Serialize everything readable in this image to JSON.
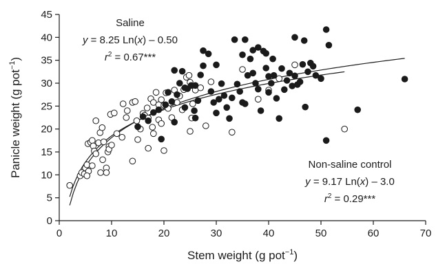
{
  "chart_data": {
    "type": "scatter",
    "xlabel": "Stem weight (g pot",
    "xlabel_sup": "−1",
    "xlabel_end": ")",
    "ylabel": "Panicle weight (g pot",
    "ylabel_sup": "−1",
    "ylabel_end": ")",
    "xlim": [
      0,
      70
    ],
    "ylim": [
      0,
      45
    ],
    "x_ticks": [
      "0",
      "10",
      "20",
      "30",
      "40",
      "50",
      "60",
      "70"
    ],
    "y_ticks": [
      "0",
      "5",
      "10",
      "15",
      "20",
      "25",
      "30",
      "35",
      "40",
      "45"
    ],
    "grid": false,
    "series": [
      {
        "name": "Saline",
        "marker": "open-circle",
        "points": [
          [
            2,
            7.7
          ],
          [
            4,
            9.8
          ],
          [
            4.3,
            10.5
          ],
          [
            4.8,
            10.2
          ],
          [
            5,
            11.5
          ],
          [
            5.3,
            12.2
          ],
          [
            5.6,
            10.8
          ],
          [
            5.3,
            9.8
          ],
          [
            5.5,
            16.8
          ],
          [
            6,
            17.1
          ],
          [
            6.3,
            17.5
          ],
          [
            6.5,
            16.3
          ],
          [
            6.7,
            15.2
          ],
          [
            7,
            14.6
          ],
          [
            6.3,
            12
          ],
          [
            7.5,
            17
          ],
          [
            7.8,
            19.2
          ],
          [
            8.2,
            20.3
          ],
          [
            7,
            21.8
          ],
          [
            8.5,
            17.2
          ],
          [
            8.3,
            13.3
          ],
          [
            9.3,
            15
          ],
          [
            9.5,
            16.2
          ],
          [
            9.8,
            23.2
          ],
          [
            10.5,
            23.5
          ],
          [
            9,
            11.5
          ],
          [
            9,
            10.5
          ],
          [
            7.9,
            10.5
          ],
          [
            12,
            18.2
          ],
          [
            12.2,
            25.5
          ],
          [
            12.8,
            22.5
          ],
          [
            14,
            25.8
          ],
          [
            14.5,
            26
          ],
          [
            14.8,
            21.8
          ],
          [
            15.5,
            20
          ],
          [
            16,
            23.4
          ],
          [
            16.3,
            23
          ],
          [
            16.8,
            24.6
          ],
          [
            17,
            22.4
          ],
          [
            17.5,
            26.6
          ],
          [
            18,
            25.8
          ],
          [
            17.8,
            20.4
          ],
          [
            18.5,
            28
          ],
          [
            19,
            25.3
          ],
          [
            19.5,
            26.4
          ],
          [
            20,
            25.2
          ],
          [
            20.4,
            27.9
          ],
          [
            20.8,
            24.5
          ],
          [
            21.5,
            22.5
          ],
          [
            22,
            28.5
          ],
          [
            22.5,
            25.8
          ],
          [
            23,
            27.2
          ],
          [
            23.5,
            24.2
          ],
          [
            23.8,
            28.6
          ],
          [
            24.3,
            31.3
          ],
          [
            24.8,
            31.7
          ],
          [
            25,
            30.2
          ],
          [
            25.5,
            25.5
          ],
          [
            25.3,
            22.4
          ],
          [
            26,
            28.5
          ],
          [
            27,
            29
          ],
          [
            28,
            20.7
          ],
          [
            29,
            30.3
          ],
          [
            19,
            22
          ],
          [
            19.5,
            21.2
          ],
          [
            20,
            15.3
          ],
          [
            17,
            15.8
          ],
          [
            18,
            19
          ],
          [
            15,
            17.7
          ],
          [
            14,
            13
          ],
          [
            25,
            19.5
          ],
          [
            33,
            19.3
          ],
          [
            35,
            33
          ],
          [
            38,
            26.5
          ],
          [
            40,
            28.5
          ],
          [
            42,
            31
          ],
          [
            45,
            34
          ],
          [
            54.5,
            20
          ],
          [
            9.5,
            15.6
          ],
          [
            10,
            16.5
          ],
          [
            13,
            24
          ],
          [
            11,
            19
          ]
        ]
      },
      {
        "name": "Non-saline control",
        "marker": "filled-circle",
        "points": [
          [
            15,
            20.5
          ],
          [
            16,
            22.7
          ],
          [
            17,
            21.8
          ],
          [
            18,
            23.6
          ],
          [
            19,
            24.2
          ],
          [
            19.5,
            17.8
          ],
          [
            20.3,
            25.3
          ],
          [
            20.8,
            28
          ],
          [
            21.5,
            26
          ],
          [
            22,
            21.5
          ],
          [
            22.5,
            27.5
          ],
          [
            23,
            30
          ],
          [
            23.5,
            32.6
          ],
          [
            24,
            24.7
          ],
          [
            24.5,
            28.8
          ],
          [
            25.2,
            29.5
          ],
          [
            25.8,
            24
          ],
          [
            26,
            22.4
          ],
          [
            26.5,
            26.2
          ],
          [
            27,
            31.8
          ],
          [
            27.5,
            33.8
          ],
          [
            27.5,
            37.1
          ],
          [
            28.5,
            36.4
          ],
          [
            29,
            28.2
          ],
          [
            29.5,
            25.8
          ],
          [
            30,
            23.5
          ],
          [
            30.5,
            26.5
          ],
          [
            31,
            29.9
          ],
          [
            31.5,
            27.3
          ],
          [
            32,
            24.7
          ],
          [
            32.5,
            22.3
          ],
          [
            33,
            26.8
          ],
          [
            33.5,
            39.5
          ],
          [
            34,
            29.8
          ],
          [
            34.5,
            28.2
          ],
          [
            35,
            25.8
          ],
          [
            35.5,
            25.5
          ],
          [
            35,
            36.2
          ],
          [
            35.5,
            39.5
          ],
          [
            36,
            31.7
          ],
          [
            36.5,
            35.3
          ],
          [
            37,
            37.2
          ],
          [
            37,
            32.2
          ],
          [
            37.5,
            30
          ],
          [
            38,
            28.7
          ],
          [
            38.5,
            24
          ],
          [
            38,
            37.8
          ],
          [
            39,
            37
          ],
          [
            39.5,
            36.5
          ],
          [
            39.5,
            33.3
          ],
          [
            40,
            31.5
          ],
          [
            40,
            28
          ],
          [
            40.5,
            30
          ],
          [
            40.8,
            35.3
          ],
          [
            41,
            31.7
          ],
          [
            41.5,
            26.7
          ],
          [
            42,
            22.3
          ],
          [
            42.5,
            33.2
          ],
          [
            43,
            28.6
          ],
          [
            43.5,
            30.6
          ],
          [
            44,
            32.2
          ],
          [
            44.5,
            29.4
          ],
          [
            45,
            31.6
          ],
          [
            45,
            40
          ],
          [
            45.5,
            29.7
          ],
          [
            46,
            30.3
          ],
          [
            46.5,
            34.1
          ],
          [
            46.8,
            39.3
          ],
          [
            47.5,
            32.5
          ],
          [
            47,
            24.8
          ],
          [
            48,
            34.4
          ],
          [
            48.5,
            33.7
          ],
          [
            49,
            31.7
          ],
          [
            50,
            31
          ],
          [
            51,
            17.5
          ],
          [
            51,
            41.7
          ],
          [
            51.5,
            38.3
          ],
          [
            57,
            24.2
          ],
          [
            66,
            30.9
          ],
          [
            22,
            32.8
          ],
          [
            24,
            29
          ],
          [
            26,
            29.5
          ],
          [
            30,
            34
          ]
        ]
      }
    ],
    "trendlines": [
      {
        "name": "Saline",
        "a": 8.25,
        "b": -0.5,
        "x_from": 2,
        "x_to": 54.5
      },
      {
        "name": "Non-saline control",
        "a": 9.17,
        "b": -3.0,
        "x_from": 2,
        "x_to": 66
      }
    ],
    "annotations": {
      "saline_label": "Saline",
      "saline_eq_y": "y",
      "saline_eq_mid": " = 8.25 Ln(",
      "saline_eq_x": "x",
      "saline_eq_end": ") – 0.50",
      "saline_r_r": "r",
      "saline_r_sup": "2",
      "saline_r_val": " = 0.67***",
      "control_label": "Non-saline control",
      "control_eq_y": "y",
      "control_eq_mid": " = 9.17 Ln(",
      "control_eq_x": "x",
      "control_eq_end": ") – 3.0",
      "control_r_r": "r",
      "control_r_sup": "2",
      "control_r_val": " = 0.29***"
    }
  }
}
